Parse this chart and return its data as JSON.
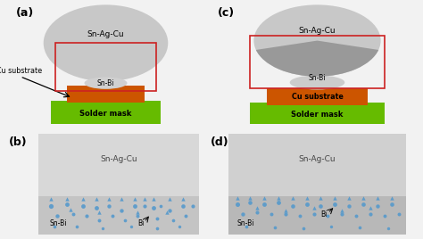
{
  "bg_color": "#f2f2f2",
  "green": "#66bb00",
  "orange": "#cc5500",
  "light_gray_ball": "#c8c8c8",
  "medium_gray": "#b0b0b0",
  "dark_gray_wedge": "#999999",
  "sn_ag_cu": "Sn-Ag-Cu",
  "sn_bi": "Sn-Bi",
  "bi": "Bi",
  "cu_substrate": "Cu substrate",
  "solder_mask": "Solder mask",
  "red_box": "#cc2222",
  "blue_dot": "#5599cc",
  "panel_bg": "#e0e0e0",
  "panel_b_top": "#d4d4d4",
  "panel_b_bot": "#bcbcbc",
  "panel_d_top": "#d4d4d4",
  "panel_d_bot": "#b0b0b0",
  "figsize": [
    4.74,
    2.68
  ],
  "dpi": 100
}
